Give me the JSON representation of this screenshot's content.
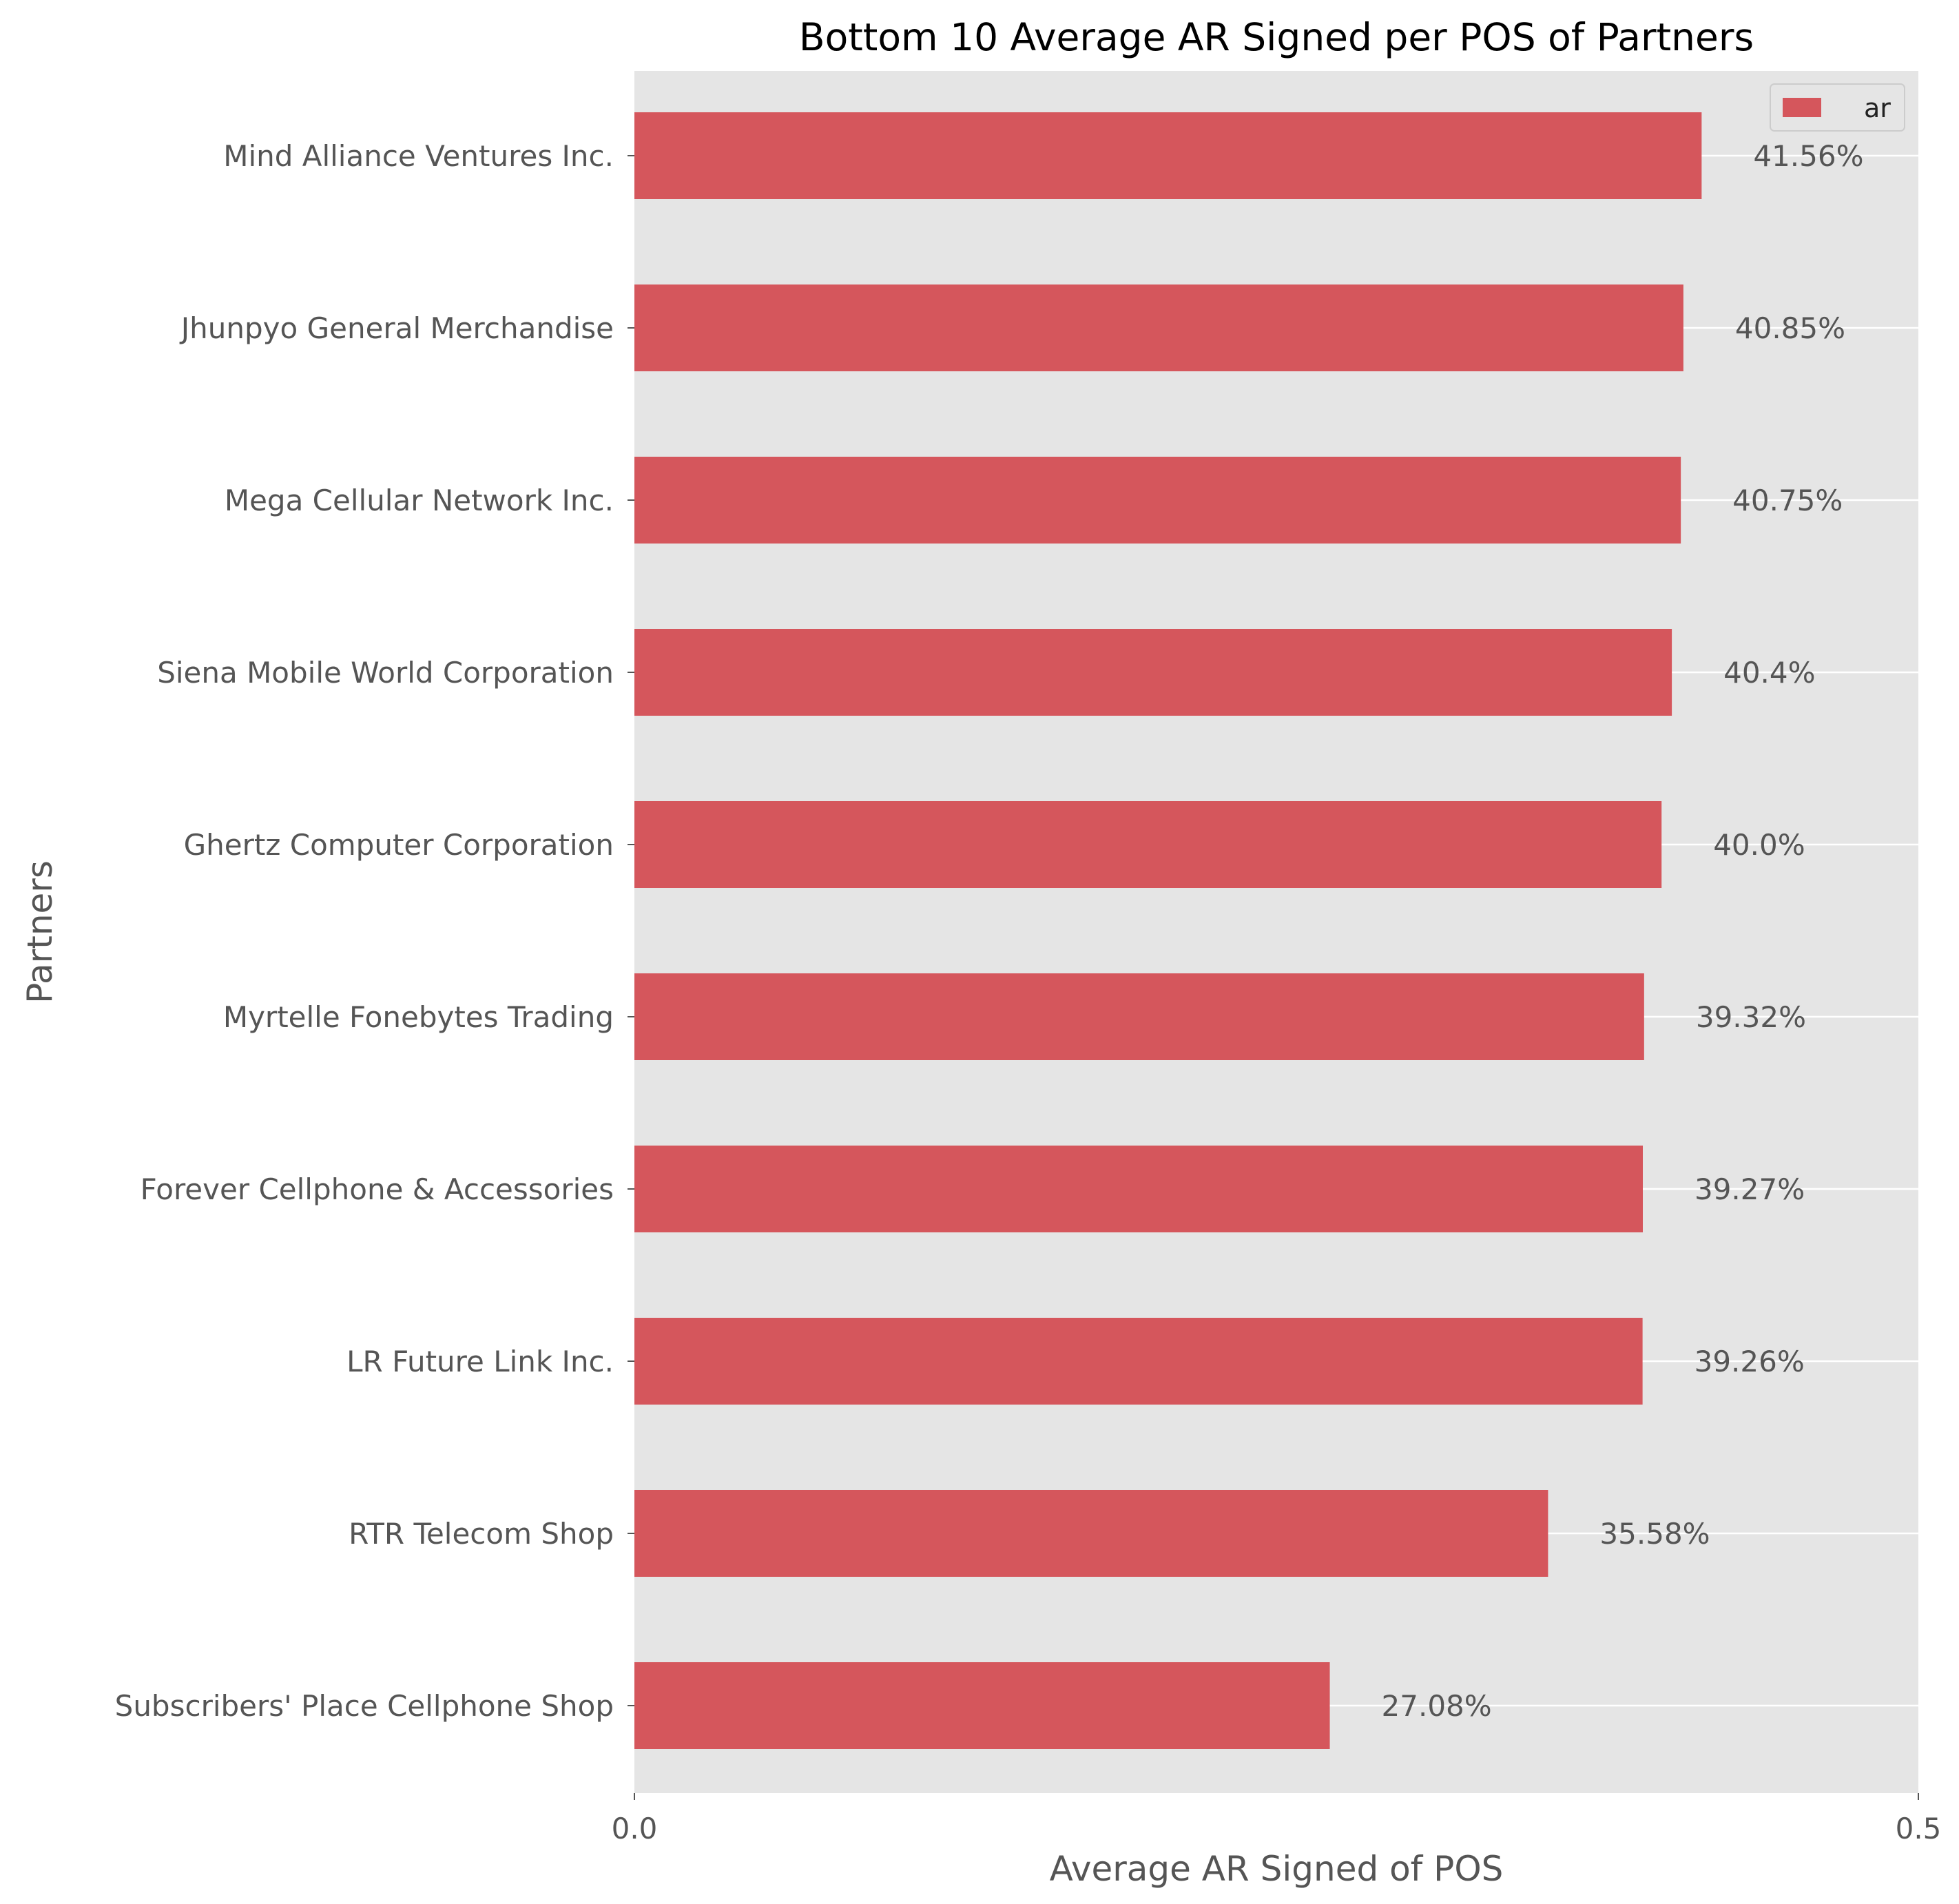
{
  "chart_data": {
    "type": "bar",
    "orientation": "horizontal",
    "title": "Bottom 10 Average AR Signed per POS of Partners",
    "xlabel": "Average AR Signed of POS",
    "ylabel": "Partners",
    "xlim": [
      0.0,
      0.5
    ],
    "xticks": [
      "0.0",
      "0.5"
    ],
    "categories": [
      "Subscribers' Place Cellphone Shop",
      "RTR Telecom Shop",
      "LR Future Link Inc.",
      "Forever Cellphone & Accessories",
      "Myrtelle Fonebytes Trading",
      "Ghertz Computer Corporation",
      "Siena Mobile World Corporation",
      "Mega Cellular Network Inc.",
      "Jhunpyo General Merchandise",
      "Mind Alliance Ventures Inc."
    ],
    "series": [
      {
        "name": "ar",
        "color": "#d5565c",
        "values": [
          0.2708,
          0.3558,
          0.3926,
          0.3927,
          0.3932,
          0.4,
          0.404,
          0.4075,
          0.4085,
          0.4156
        ],
        "labels": [
          "27.08%",
          "35.58%",
          "39.26%",
          "39.27%",
          "39.32%",
          "40.0%",
          "40.4%",
          "40.75%",
          "40.85%",
          "41.56%"
        ]
      }
    ],
    "grid": true,
    "legend_position": "top-right",
    "background": "#e5e5e5"
  }
}
